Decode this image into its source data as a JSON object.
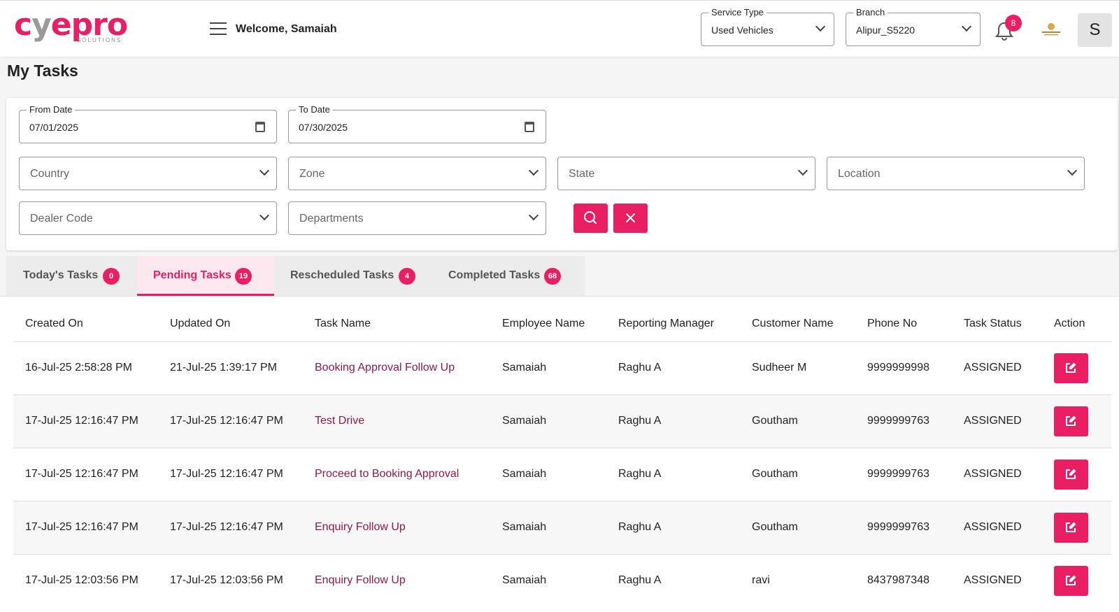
{
  "header": {
    "logo_text_main_1": "c",
    "logo_text_main_2": "y",
    "logo_text_main_3": "epro",
    "logo_sub": "SOLUTIONS",
    "welcome": "Welcome, Samaiah",
    "service_type": {
      "label": "Service Type",
      "value": "Used Vehicles"
    },
    "branch": {
      "label": "Branch",
      "value": "Alipur_S5220"
    },
    "notification_count": "8",
    "avatar_initial": "S"
  },
  "page_title": "My Tasks",
  "filters": {
    "from_date": {
      "label": "From Date",
      "value": "07/01/2025"
    },
    "to_date": {
      "label": "To Date",
      "value": "07/30/2025"
    },
    "country": "Country",
    "zone": "Zone",
    "state": "State",
    "location": "Location",
    "dealer_code": "Dealer Code",
    "departments": "Departments"
  },
  "tabs": [
    {
      "label": "Today's Tasks",
      "count": "0"
    },
    {
      "label": "Pending Tasks",
      "count": "19"
    },
    {
      "label": "Rescheduled Tasks",
      "count": "4"
    },
    {
      "label": "Completed Tasks",
      "count": "68"
    }
  ],
  "table": {
    "headers": [
      "Created On",
      "Updated On",
      "Task Name",
      "Employee Name",
      "Reporting Manager",
      "Customer Name",
      "Phone No",
      "Task Status",
      "Action"
    ],
    "rows": [
      {
        "created": "16-Jul-25 2:58:28 PM",
        "updated": "21-Jul-25 1:39:17 PM",
        "task": "Booking Approval Follow Up",
        "employee": "Samaiah",
        "manager": "Raghu A",
        "customer": "Sudheer M",
        "phone": "9999999998",
        "status": "ASSIGNED"
      },
      {
        "created": "17-Jul-25 12:16:47 PM",
        "updated": "17-Jul-25 12:16:47 PM",
        "task": "Test Drive",
        "employee": "Samaiah",
        "manager": "Raghu A",
        "customer": "Goutham",
        "phone": "9999999763",
        "status": "ASSIGNED"
      },
      {
        "created": "17-Jul-25 12:16:47 PM",
        "updated": "17-Jul-25 12:16:47 PM",
        "task": "Proceed to Booking Approval",
        "employee": "Samaiah",
        "manager": "Raghu A",
        "customer": "Goutham",
        "phone": "9999999763",
        "status": "ASSIGNED"
      },
      {
        "created": "17-Jul-25 12:16:47 PM",
        "updated": "17-Jul-25 12:16:47 PM",
        "task": "Enquiry Follow Up",
        "employee": "Samaiah",
        "manager": "Raghu A",
        "customer": "Goutham",
        "phone": "9999999763",
        "status": "ASSIGNED"
      },
      {
        "created": "17-Jul-25 12:03:56 PM",
        "updated": "17-Jul-25 12:03:56 PM",
        "task": "Enquiry Follow Up",
        "employee": "Samaiah",
        "manager": "Raghu A",
        "customer": "ravi",
        "phone": "8437987348",
        "status": "ASSIGNED"
      }
    ]
  },
  "colors": {
    "accent": "#e91e63",
    "task_link": "#8e1a4a"
  },
  "icons": {
    "menu": "hamburger-icon",
    "bell": "bell-icon",
    "calendar": "calendar-icon",
    "search": "search-icon",
    "clear": "close-icon",
    "edit": "edit-icon"
  }
}
